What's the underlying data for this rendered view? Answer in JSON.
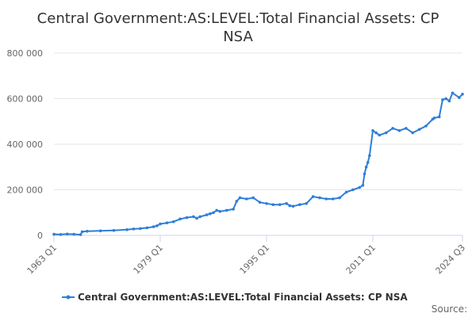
{
  "chart_data": {
    "type": "line",
    "title_lines": [
      "Central Government:AS:LEVEL:Total Financial Assets: CP",
      "NSA"
    ],
    "ylim": [
      0,
      800000
    ],
    "y_ticks": [
      0,
      200000,
      400000,
      600000,
      800000
    ],
    "y_tick_labels": [
      "0",
      "200 000",
      "400 000",
      "600 000",
      "800 000"
    ],
    "x_range": [
      1963.0,
      2024.5
    ],
    "x_ticks": [
      1963.0,
      1979.0,
      1995.0,
      2011.0,
      2024.5
    ],
    "x_tick_labels": [
      "1963 Q1",
      "1979 Q1",
      "1995 Q1",
      "2011 Q1",
      "2024 Q3"
    ],
    "legend_placement": "bottom",
    "source_label": "Source:",
    "colors": {
      "series": "#2f7ed8",
      "grid": "#e6e6e6",
      "axis": "#ccd6eb"
    },
    "series": [
      {
        "name": "Central Government:AS:LEVEL:Total Financial Assets: CP NSA",
        "x": [
          1963.0,
          1964.0,
          1965.0,
          1966.0,
          1967.0,
          1967.25,
          1968.0,
          1970.0,
          1972.0,
          1974.0,
          1975.0,
          1976.0,
          1977.0,
          1978.0,
          1978.5,
          1979.0,
          1980.0,
          1981.0,
          1982.0,
          1983.0,
          1984.0,
          1984.5,
          1985.0,
          1986.0,
          1986.5,
          1987.0,
          1987.5,
          1988.0,
          1989.0,
          1990.0,
          1990.5,
          1991.0,
          1992.0,
          1993.0,
          1994.0,
          1995.0,
          1996.0,
          1997.0,
          1998.0,
          1998.5,
          1999.0,
          2000.0,
          2001.0,
          2002.0,
          2003.0,
          2004.0,
          2005.0,
          2006.0,
          2007.0,
          2008.0,
          2009.0,
          2009.5,
          2009.75,
          2010.0,
          2010.25,
          2010.5,
          2011.0,
          2011.5,
          2012.0,
          2013.0,
          2014.0,
          2015.0,
          2016.0,
          2017.0,
          2018.0,
          2019.0,
          2020.0,
          2020.25,
          2021.0,
          2021.5,
          2022.0,
          2022.5,
          2023.0,
          2024.0,
          2024.5
        ],
        "values": [
          5000,
          4000,
          6000,
          5000,
          3000,
          16000,
          18000,
          20000,
          22000,
          25000,
          28000,
          30000,
          33000,
          38000,
          42000,
          50000,
          55000,
          60000,
          72000,
          78000,
          82000,
          75000,
          82000,
          90000,
          95000,
          100000,
          110000,
          105000,
          110000,
          115000,
          150000,
          165000,
          160000,
          165000,
          145000,
          140000,
          135000,
          135000,
          140000,
          130000,
          128000,
          135000,
          140000,
          170000,
          165000,
          160000,
          160000,
          165000,
          190000,
          200000,
          210000,
          220000,
          270000,
          300000,
          320000,
          350000,
          460000,
          450000,
          440000,
          450000,
          470000,
          460000,
          470000,
          450000,
          465000,
          480000,
          510000,
          515000,
          520000,
          595000,
          600000,
          590000,
          625000,
          605000,
          620000
        ]
      }
    ]
  }
}
